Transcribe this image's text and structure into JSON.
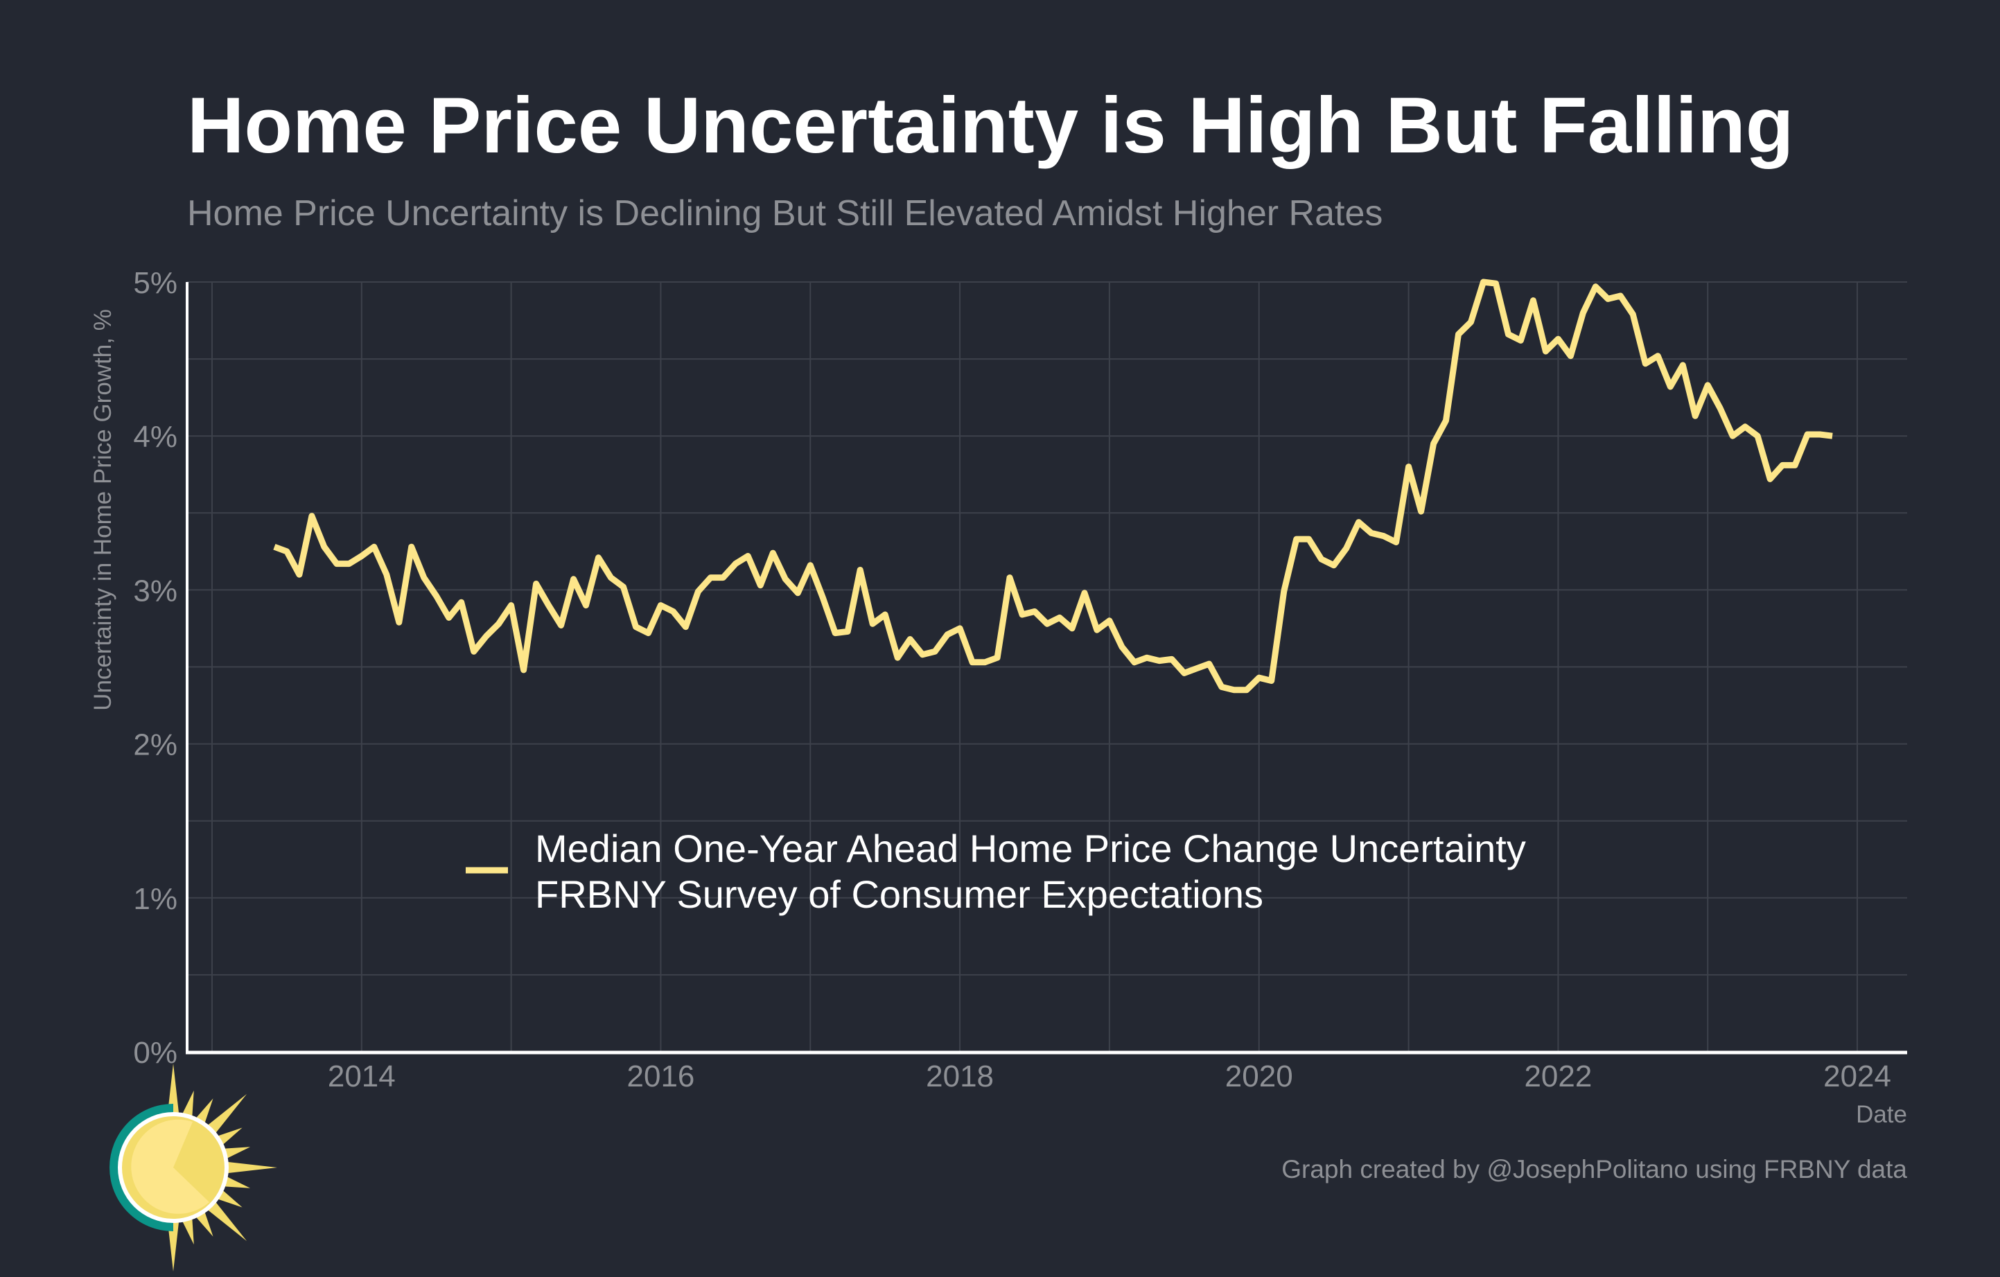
{
  "chart_data": {
    "type": "line",
    "title": "Home Price Uncertainty is High But Falling",
    "subtitle": "Home Price Uncertainty is Declining But Still Elevated Amidst Higher Rates",
    "xlabel": "Date",
    "ylabel": "Uncertainty in Home Price Growth, %",
    "ylim": [
      0,
      5
    ],
    "xlim": [
      "2012-11",
      "2024-05"
    ],
    "yticks": [
      "0%",
      "1%",
      "2%",
      "3%",
      "4%",
      "5%"
    ],
    "xticks": [
      "2014",
      "2016",
      "2018",
      "2020",
      "2022",
      "2024"
    ],
    "grid": true,
    "legend_position": "bottom-center",
    "series": [
      {
        "name": "Median One-Year Ahead Home Price Change Uncertainty",
        "name_line2": "FRBNY Survey of Consumer Expectations",
        "color": "#fde68a",
        "start": "2013-06",
        "frequency": "monthly",
        "values": [
          3.28,
          3.25,
          3.1,
          3.48,
          3.28,
          3.17,
          3.17,
          3.22,
          3.28,
          3.1,
          2.79,
          3.28,
          3.08,
          2.96,
          2.82,
          2.92,
          2.6,
          2.7,
          2.78,
          2.9,
          2.48,
          3.04,
          2.9,
          2.77,
          3.07,
          2.9,
          3.21,
          3.08,
          3.02,
          2.76,
          2.72,
          2.9,
          2.86,
          2.76,
          2.99,
          3.08,
          3.08,
          3.17,
          3.22,
          3.03,
          3.24,
          3.07,
          2.98,
          3.16,
          2.95,
          2.72,
          2.73,
          3.13,
          2.78,
          2.84,
          2.56,
          2.68,
          2.58,
          2.6,
          2.71,
          2.75,
          2.53,
          2.53,
          2.56,
          3.08,
          2.84,
          2.86,
          2.78,
          2.82,
          2.75,
          2.98,
          2.74,
          2.8,
          2.63,
          2.53,
          2.56,
          2.54,
          2.55,
          2.46,
          2.49,
          2.52,
          2.37,
          2.35,
          2.35,
          2.43,
          2.41,
          2.99,
          3.33,
          3.33,
          3.2,
          3.16,
          3.27,
          3.44,
          3.37,
          3.35,
          3.31,
          3.8,
          3.51,
          3.95,
          4.1,
          4.66,
          4.74,
          5.0,
          4.99,
          4.66,
          4.62,
          4.88,
          4.55,
          4.63,
          4.52,
          4.8,
          4.97,
          4.89,
          4.91,
          4.79,
          4.47,
          4.52,
          4.32,
          4.46,
          4.13,
          4.33,
          4.18,
          4.0,
          4.06,
          4.0,
          3.72,
          3.81,
          3.81,
          4.01,
          4.01,
          4.0
        ]
      }
    ]
  },
  "credit": "Graph created by @JosephPolitano using FRBNY data",
  "colors": {
    "background": "#242832",
    "line": "#fde68a",
    "logo_teal": "#0b9488",
    "logo_sun": "#f3dc6b"
  },
  "logo_icon": "sun-icon"
}
